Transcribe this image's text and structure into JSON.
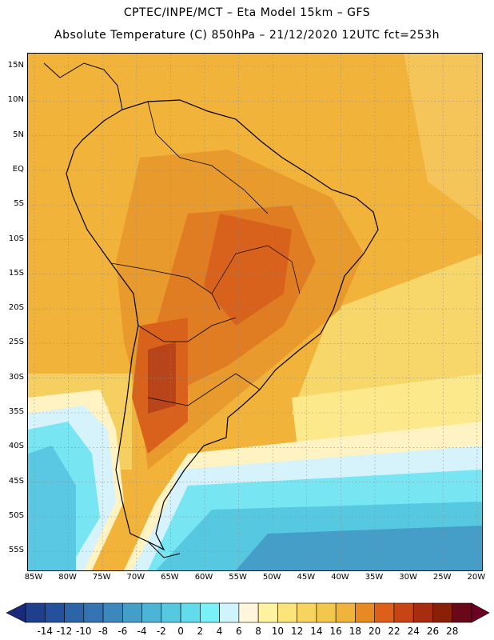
{
  "header": {
    "title_line1": "CPTEC/INPE/MCT –  Eta Model 15km – GFS",
    "title_line2": "Absolute Temperature (C) 850hPa – 21/12/2020 12UTC fct=253h"
  },
  "map": {
    "lat_labels": [
      "15N",
      "10N",
      "5N",
      "EQ",
      "5S",
      "10S",
      "15S",
      "20S",
      "25S",
      "30S",
      "35S",
      "40S",
      "45S",
      "50S",
      "55S"
    ],
    "lon_labels": [
      "85W",
      "80W",
      "75W",
      "70W",
      "65W",
      "60W",
      "55W",
      "50W",
      "45W",
      "40W",
      "35W",
      "30W",
      "25W",
      "20W"
    ],
    "gridline_color": "#8a8a8a",
    "boundary_color": "#000000"
  },
  "colorbar": {
    "labels": [
      "-14",
      "-12",
      "-10",
      "-8",
      "-6",
      "-4",
      "-2",
      "0",
      "2",
      "4",
      "6",
      "8",
      "10",
      "12",
      "14",
      "16",
      "18",
      "20",
      "22",
      "24",
      "26",
      "28"
    ],
    "colors": [
      "#1f3f8c",
      "#24509c",
      "#2d64a8",
      "#3474b2",
      "#3c88bc",
      "#449ec8",
      "#4cb4d4",
      "#56c8e0",
      "#62dcec",
      "#78f2f6",
      "#cff4fb",
      "#fff6dc",
      "#fff3a0",
      "#fbe47a",
      "#f7d45f",
      "#f3c64c",
      "#f0b43c",
      "#e88a24",
      "#dc601a",
      "#c84414",
      "#a82c10",
      "#882008",
      "#680818"
    ],
    "arrow_left_color": "#1a2a78",
    "arrow_right_color": "#6a0022"
  }
}
